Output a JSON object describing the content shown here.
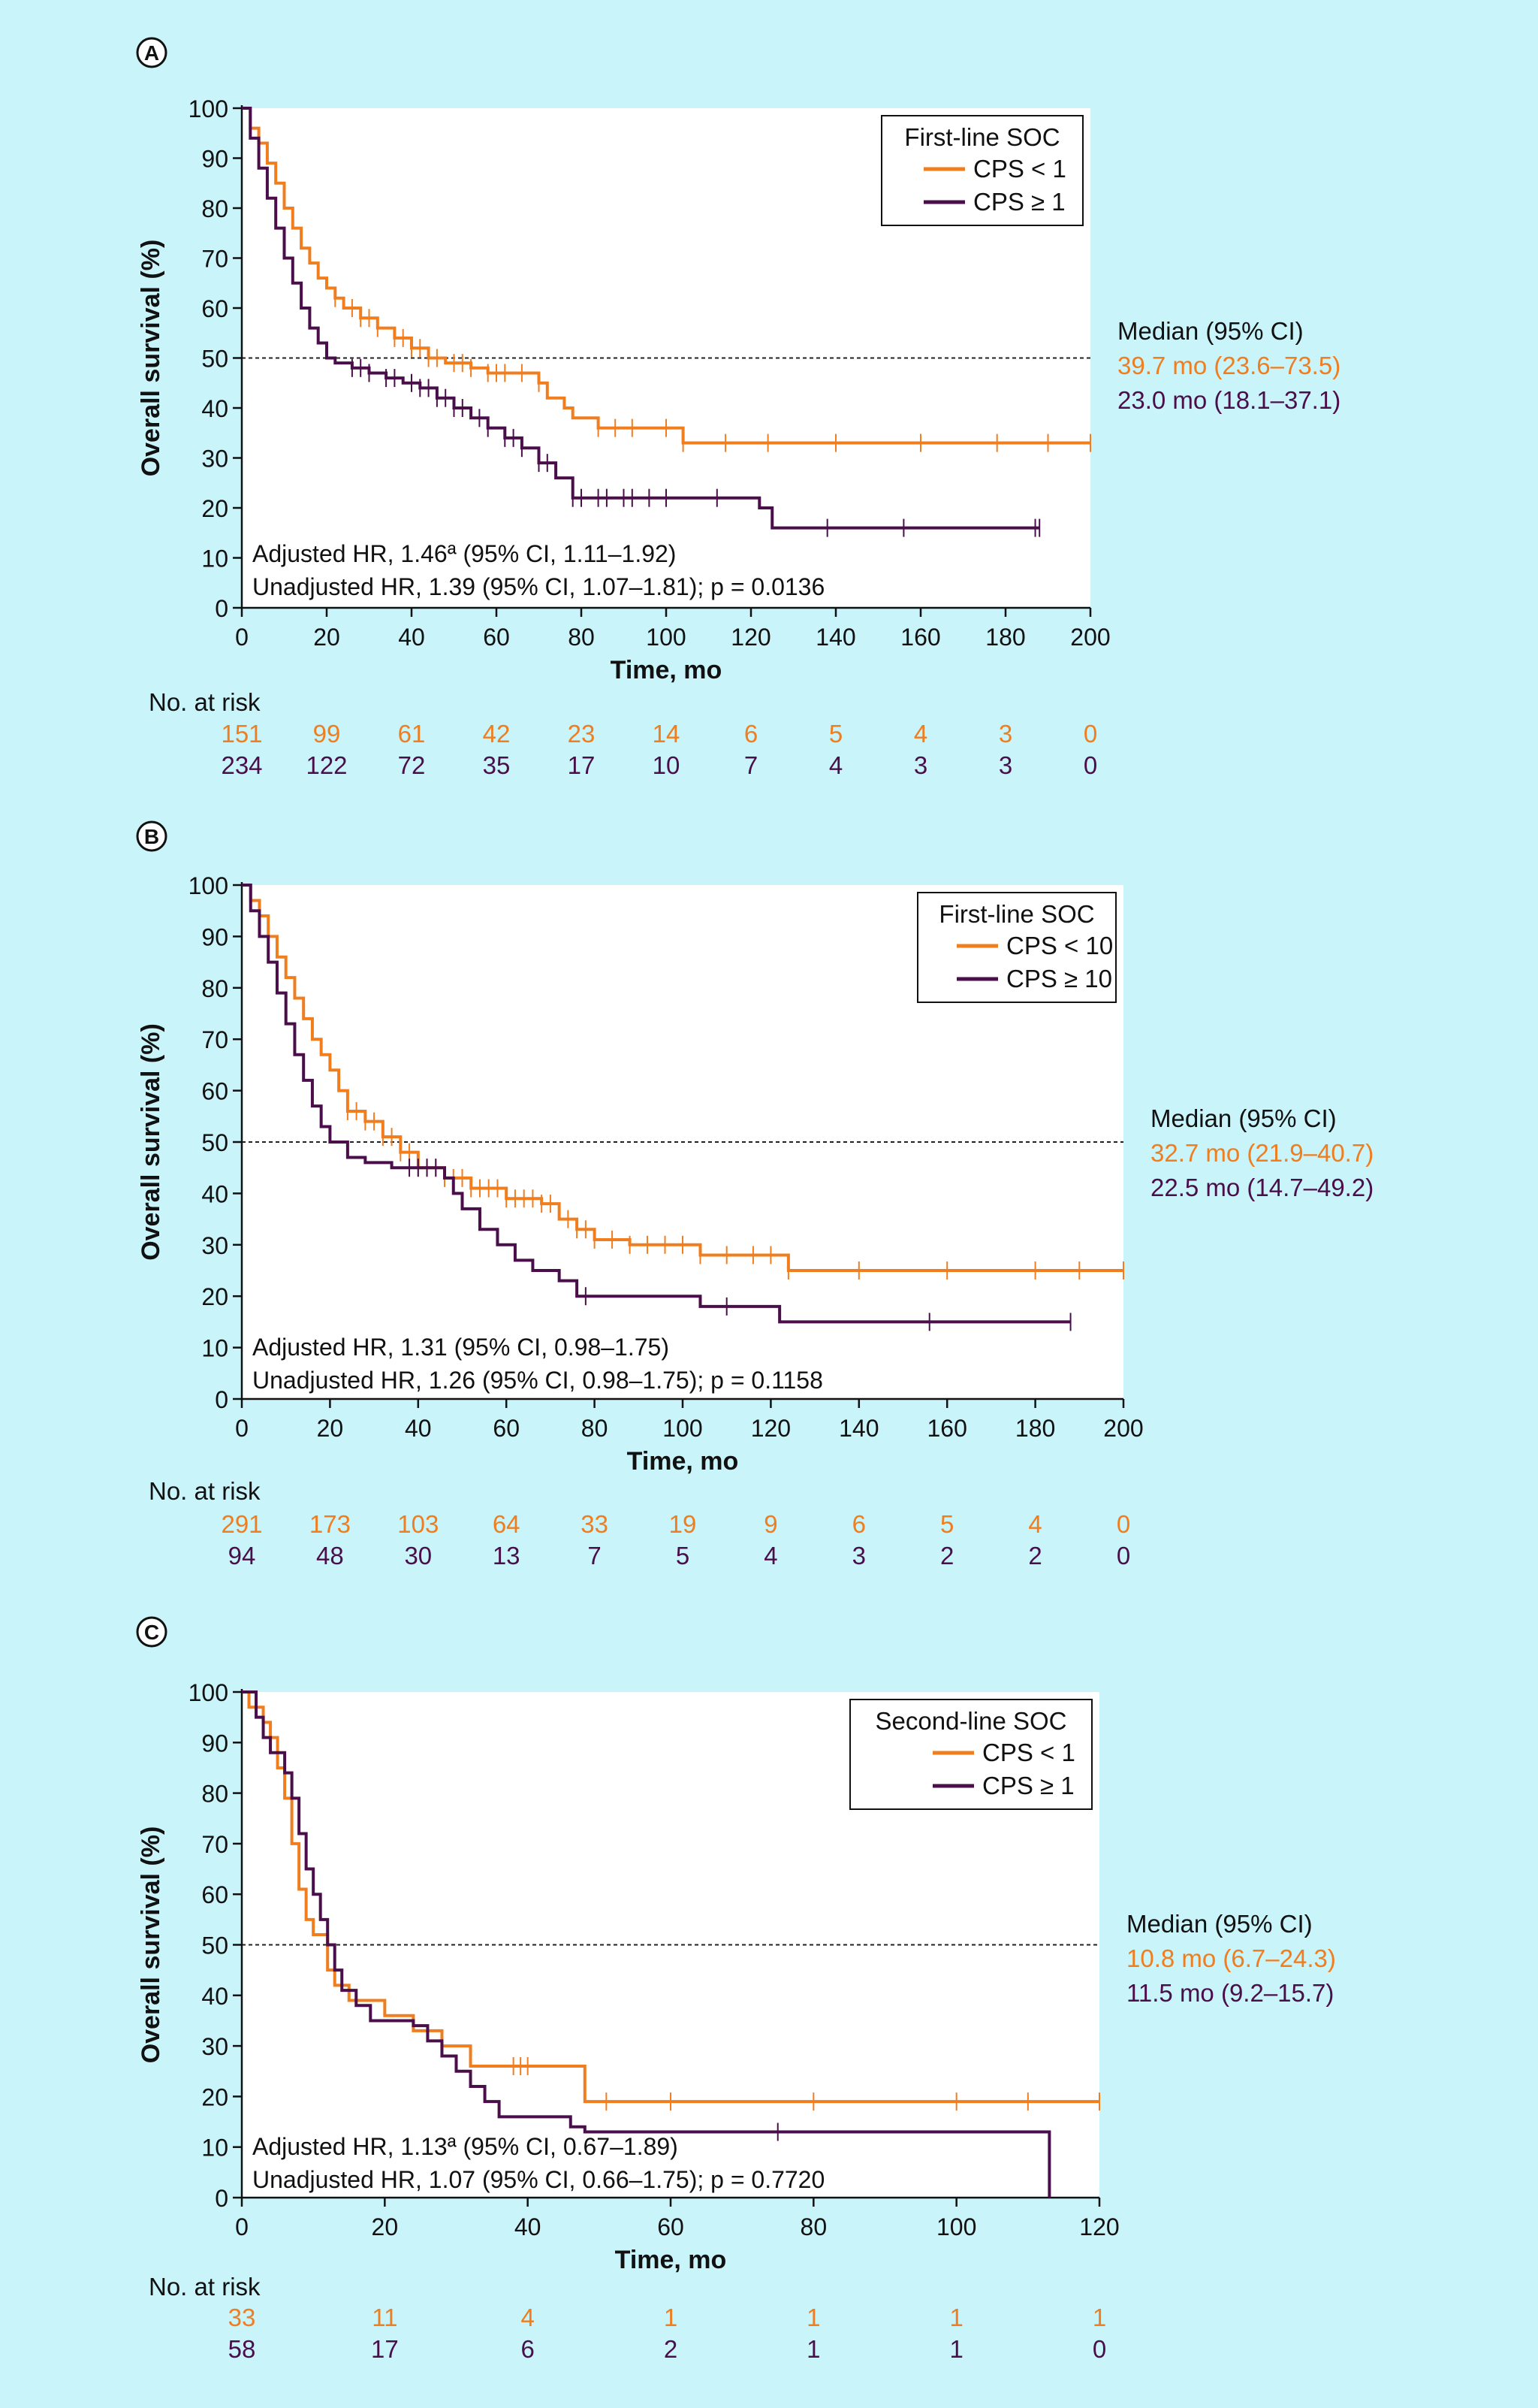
{
  "colors": {
    "orange": "#f07d1e",
    "purple": "#4a0f4a",
    "black": "#111111",
    "plotbg": "#ffffff",
    "pagebg": "#c8f4fa"
  },
  "chart_data": [
    {
      "panel": "A",
      "type": "line",
      "xlabel": "Time, mo",
      "ylabel": "Overall survival (%)",
      "xlim": [
        0,
        200
      ],
      "ylim": [
        0,
        100
      ],
      "xticks": [
        0,
        20,
        40,
        60,
        80,
        100,
        120,
        140,
        160,
        180,
        200
      ],
      "yticks": [
        0,
        10,
        20,
        30,
        40,
        50,
        60,
        70,
        80,
        90,
        100
      ],
      "median_reference_line": 50,
      "legend": {
        "title": "First-line SOC",
        "placement": "top-right"
      },
      "median": {
        "title": "Median (95% CI)",
        "values": [
          "39.7 mo (23.6–73.5)",
          "23.0 mo (18.1–37.1)"
        ]
      },
      "hr_lines": [
        "Adjusted HR, 1.46ª (95% CI, 1.11–1.92)",
        "Unadjusted HR, 1.39 (95% CI, 1.07–1.81); p = 0.0136"
      ],
      "series": [
        {
          "name": "CPS < 1",
          "color": "orange",
          "steps": [
            [
              0,
              100
            ],
            [
              2,
              96
            ],
            [
              4,
              93
            ],
            [
              6,
              89
            ],
            [
              8,
              85
            ],
            [
              10,
              80
            ],
            [
              12,
              76
            ],
            [
              14,
              72
            ],
            [
              16,
              69
            ],
            [
              18,
              66
            ],
            [
              20,
              64
            ],
            [
              22,
              62
            ],
            [
              24,
              60
            ],
            [
              28,
              58
            ],
            [
              32,
              56
            ],
            [
              36,
              54
            ],
            [
              40,
              52
            ],
            [
              44,
              50
            ],
            [
              48,
              49
            ],
            [
              54,
              48
            ],
            [
              58,
              47
            ],
            [
              64,
              47
            ],
            [
              70,
              45
            ],
            [
              72,
              42
            ],
            [
              76,
              40
            ],
            [
              78,
              38
            ],
            [
              84,
              36
            ],
            [
              104,
              33
            ],
            [
              200,
              33
            ]
          ],
          "censor": [
            22,
            26,
            28,
            30,
            32,
            36,
            38,
            40,
            42,
            44,
            46,
            50,
            52,
            54,
            58,
            60,
            62,
            66,
            70,
            84,
            88,
            92,
            100,
            104,
            114,
            124,
            140,
            160,
            178,
            190,
            200
          ]
        },
        {
          "name": "CPS ≥ 1",
          "color": "purple",
          "steps": [
            [
              0,
              100
            ],
            [
              2,
              94
            ],
            [
              4,
              88
            ],
            [
              6,
              82
            ],
            [
              8,
              76
            ],
            [
              10,
              70
            ],
            [
              12,
              65
            ],
            [
              14,
              60
            ],
            [
              16,
              56
            ],
            [
              18,
              53
            ],
            [
              20,
              50
            ],
            [
              22,
              49
            ],
            [
              26,
              48
            ],
            [
              30,
              47
            ],
            [
              34,
              46
            ],
            [
              38,
              45
            ],
            [
              42,
              44
            ],
            [
              46,
              42
            ],
            [
              50,
              40
            ],
            [
              54,
              38
            ],
            [
              58,
              36
            ],
            [
              62,
              34
            ],
            [
              66,
              32
            ],
            [
              70,
              29
            ],
            [
              74,
              26
            ],
            [
              78,
              22
            ],
            [
              104,
              22
            ],
            [
              122,
              20
            ],
            [
              125,
              16
            ],
            [
              188,
              16
            ]
          ],
          "censor": [
            26,
            28,
            30,
            34,
            36,
            40,
            42,
            44,
            46,
            48,
            50,
            52,
            56,
            58,
            62,
            64,
            66,
            70,
            72,
            78,
            80,
            84,
            86,
            90,
            92,
            96,
            100,
            112,
            138,
            156,
            187,
            188
          ]
        }
      ],
      "risk_table": {
        "title": "No. at risk",
        "times": [
          0,
          20,
          40,
          60,
          80,
          100,
          120,
          140,
          160,
          180,
          200
        ],
        "rows": [
          {
            "series": "CPS < 1",
            "color": "orange",
            "values": [
              "151",
              "99",
              "61",
              "42",
              "23",
              "14",
              "6",
              "5",
              "4",
              "3",
              "0"
            ]
          },
          {
            "series": "CPS ≥ 1",
            "color": "purple",
            "values": [
              "234",
              "122",
              "72",
              "35",
              "17",
              "10",
              "7",
              "4",
              "3",
              "3",
              "0"
            ]
          }
        ]
      }
    },
    {
      "panel": "B",
      "type": "line",
      "xlabel": "Time, mo",
      "ylabel": "Overall survival (%)",
      "xlim": [
        0,
        200
      ],
      "ylim": [
        0,
        100
      ],
      "xticks": [
        0,
        20,
        40,
        60,
        80,
        100,
        120,
        140,
        160,
        180,
        200
      ],
      "yticks": [
        0,
        10,
        20,
        30,
        40,
        50,
        60,
        70,
        80,
        90,
        100
      ],
      "median_reference_line": 50,
      "legend": {
        "title": "First-line SOC",
        "placement": "top-right"
      },
      "median": {
        "title": "Median (95% CI)",
        "values": [
          "32.7 mo (21.9–40.7)",
          "22.5 mo (14.7–49.2)"
        ]
      },
      "hr_lines": [
        "Adjusted HR, 1.31 (95% CI, 0.98–1.75)",
        "Unadjusted HR, 1.26 (95% CI, 0.98–1.75); p = 0.1158"
      ],
      "series": [
        {
          "name": "CPS < 10",
          "color": "orange",
          "steps": [
            [
              0,
              100
            ],
            [
              2,
              97
            ],
            [
              4,
              94
            ],
            [
              6,
              90
            ],
            [
              8,
              86
            ],
            [
              10,
              82
            ],
            [
              12,
              78
            ],
            [
              14,
              74
            ],
            [
              16,
              70
            ],
            [
              18,
              67
            ],
            [
              20,
              64
            ],
            [
              22,
              60
            ],
            [
              24,
              56
            ],
            [
              28,
              54
            ],
            [
              32,
              51
            ],
            [
              36,
              48
            ],
            [
              40,
              45
            ],
            [
              46,
              43
            ],
            [
              52,
              41
            ],
            [
              60,
              39
            ],
            [
              68,
              38
            ],
            [
              72,
              35
            ],
            [
              76,
              33
            ],
            [
              80,
              31
            ],
            [
              88,
              30
            ],
            [
              104,
              28
            ],
            [
              124,
              25
            ],
            [
              200,
              25
            ]
          ],
          "censor": [
            24,
            26,
            28,
            30,
            32,
            34,
            36,
            38,
            40,
            42,
            44,
            46,
            48,
            50,
            52,
            54,
            56,
            58,
            60,
            62,
            64,
            66,
            68,
            70,
            74,
            76,
            78,
            80,
            84,
            88,
            92,
            96,
            100,
            104,
            110,
            116,
            120,
            124,
            140,
            160,
            180,
            190,
            200
          ]
        },
        {
          "name": "CPS ≥ 10",
          "color": "purple",
          "steps": [
            [
              0,
              100
            ],
            [
              2,
              95
            ],
            [
              4,
              90
            ],
            [
              6,
              85
            ],
            [
              8,
              79
            ],
            [
              10,
              73
            ],
            [
              12,
              67
            ],
            [
              14,
              62
            ],
            [
              16,
              57
            ],
            [
              18,
              53
            ],
            [
              20,
              50
            ],
            [
              24,
              47
            ],
            [
              28,
              46
            ],
            [
              34,
              45
            ],
            [
              40,
              45
            ],
            [
              46,
              43
            ],
            [
              48,
              40
            ],
            [
              50,
              37
            ],
            [
              54,
              33
            ],
            [
              58,
              30
            ],
            [
              62,
              27
            ],
            [
              66,
              25
            ],
            [
              72,
              23
            ],
            [
              76,
              20
            ],
            [
              86,
              20
            ],
            [
              104,
              18
            ],
            [
              122,
              15
            ],
            [
              188,
              15
            ]
          ],
          "censor": [
            38,
            40,
            42,
            44,
            78,
            110,
            156,
            188
          ]
        }
      ],
      "risk_table": {
        "title": "No. at risk",
        "times": [
          0,
          20,
          40,
          60,
          80,
          100,
          120,
          140,
          160,
          180,
          200
        ],
        "rows": [
          {
            "series": "CPS < 10",
            "color": "orange",
            "values": [
              "291",
              "173",
              "103",
              "64",
              "33",
              "19",
              "9",
              "6",
              "5",
              "4",
              "0"
            ]
          },
          {
            "series": "CPS ≥ 10",
            "color": "purple",
            "values": [
              "94",
              "48",
              "30",
              "13",
              "7",
              "5",
              "4",
              "3",
              "2",
              "2",
              "0"
            ]
          }
        ]
      }
    },
    {
      "panel": "C",
      "type": "line",
      "xlabel": "Time, mo",
      "ylabel": "Overall survival (%)",
      "xlim": [
        0,
        120
      ],
      "ylim": [
        0,
        100
      ],
      "xticks": [
        0,
        20,
        40,
        60,
        80,
        100,
        120
      ],
      "yticks": [
        0,
        10,
        20,
        30,
        40,
        50,
        60,
        70,
        80,
        90,
        100
      ],
      "median_reference_line": 50,
      "legend": {
        "title": "Second-line SOC",
        "placement": "top-right"
      },
      "median": {
        "title": "Median (95% CI)",
        "values": [
          "10.8 mo (6.7–24.3)",
          "11.5 mo (9.2–15.7)"
        ]
      },
      "hr_lines": [
        "Adjusted HR, 1.13ª (95% CI, 0.67–1.89)",
        "Unadjusted HR, 1.07 (95% CI, 0.66–1.75); p = 0.7720"
      ],
      "series": [
        {
          "name": "CPS < 1",
          "color": "orange",
          "steps": [
            [
              0,
              100
            ],
            [
              1,
              97
            ],
            [
              3,
              94
            ],
            [
              4,
              91
            ],
            [
              5,
              85
            ],
            [
              6,
              79
            ],
            [
              7,
              70
            ],
            [
              8,
              61
            ],
            [
              9,
              55
            ],
            [
              10,
              52
            ],
            [
              12,
              45
            ],
            [
              13,
              42
            ],
            [
              15,
              39
            ],
            [
              20,
              36
            ],
            [
              24,
              33
            ],
            [
              28,
              30
            ],
            [
              32,
              26
            ],
            [
              48,
              19
            ],
            [
              120,
              19
            ]
          ],
          "censor": [
            38,
            39,
            40,
            51,
            60,
            80,
            100,
            110,
            120
          ]
        },
        {
          "name": "CPS ≥ 1",
          "color": "purple",
          "steps": [
            [
              0,
              100
            ],
            [
              2,
              95
            ],
            [
              3,
              91
            ],
            [
              4,
              88
            ],
            [
              6,
              84
            ],
            [
              7,
              79
            ],
            [
              8,
              72
            ],
            [
              9,
              65
            ],
            [
              10,
              60
            ],
            [
              11,
              55
            ],
            [
              12,
              50
            ],
            [
              13,
              45
            ],
            [
              14,
              41
            ],
            [
              16,
              38
            ],
            [
              18,
              35
            ],
            [
              24,
              34
            ],
            [
              26,
              31
            ],
            [
              28,
              28
            ],
            [
              30,
              25
            ],
            [
              32,
              22
            ],
            [
              34,
              19
            ],
            [
              36,
              16
            ],
            [
              46,
              14
            ],
            [
              48,
              13
            ],
            [
              113,
              13
            ],
            [
              113,
              0
            ]
          ],
          "censor": [
            75
          ]
        }
      ],
      "risk_table": {
        "title": "No. at risk",
        "times": [
          0,
          20,
          40,
          60,
          80,
          100,
          120
        ],
        "rows": [
          {
            "series": "CPS < 1",
            "color": "orange",
            "values": [
              "33",
              "11",
              "4",
              "1",
              "1",
              "1",
              "1"
            ]
          },
          {
            "series": "CPS ≥ 1",
            "color": "purple",
            "values": [
              "58",
              "17",
              "6",
              "2",
              "1",
              "1",
              "0"
            ]
          }
        ]
      }
    }
  ]
}
